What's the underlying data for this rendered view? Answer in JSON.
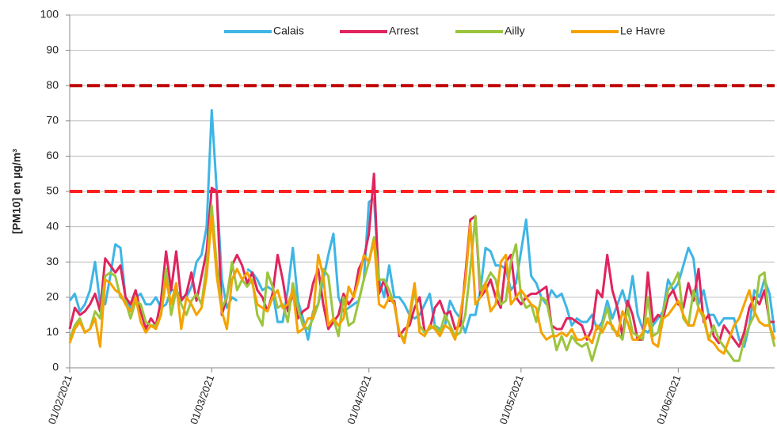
{
  "chart_data": {
    "type": "line",
    "y_label": "[PM10] en µg/m³",
    "x": [
      0,
      1,
      2,
      3,
      4,
      5,
      6,
      7,
      8,
      9,
      10,
      11,
      12,
      13,
      14,
      15,
      16,
      17,
      18,
      19,
      20,
      21,
      22,
      23,
      24,
      25,
      26,
      27,
      28,
      29,
      30,
      31,
      32,
      33,
      34,
      35,
      36,
      37,
      38,
      39,
      40,
      41,
      42,
      43,
      44,
      45,
      46,
      47,
      48,
      49,
      50,
      51,
      52,
      53,
      54,
      55,
      56,
      57,
      58,
      59,
      60,
      61,
      62,
      63,
      64,
      65,
      66,
      67,
      68,
      69,
      70,
      71,
      72,
      73,
      74,
      75,
      76,
      77,
      78,
      79,
      80,
      81,
      82,
      83,
      84,
      85,
      86,
      87,
      88,
      89,
      90,
      91,
      92,
      93,
      94,
      95,
      96,
      97,
      98,
      99,
      100,
      101,
      102,
      103,
      104,
      105,
      106,
      107,
      108,
      109,
      110,
      111,
      112,
      113,
      114,
      115,
      116,
      117,
      118,
      119,
      120,
      121,
      122,
      123,
      124,
      125,
      126,
      127,
      128,
      129,
      130,
      131,
      132,
      133,
      134,
      135,
      136,
      137,
      138,
      139
    ],
    "xlim": [
      0,
      139
    ],
    "xticks": [
      {
        "value": 0,
        "label": "01/02/2021"
      },
      {
        "value": 28,
        "label": "01/03/2021"
      },
      {
        "value": 59,
        "label": "01/04/2021"
      },
      {
        "value": 89,
        "label": "01/05/2021"
      },
      {
        "value": 120,
        "label": "01/06/2021"
      }
    ],
    "ylim": [
      0,
      100
    ],
    "yticks": [
      0,
      10,
      20,
      30,
      40,
      50,
      60,
      70,
      80,
      90,
      100
    ],
    "grid": true,
    "legend": "top",
    "reference_lines": [
      {
        "value": 80,
        "color": "#c00000"
      },
      {
        "value": 50,
        "color": "#ff1f1f"
      }
    ],
    "series": [
      {
        "name": "Calais",
        "color": "#3eb5e5",
        "values": [
          19,
          21,
          16,
          18,
          22,
          30,
          18,
          18,
          26,
          35,
          34,
          20,
          17,
          20,
          21,
          18,
          18,
          20,
          17,
          18,
          22,
          22,
          20,
          20,
          23,
          30,
          32,
          40,
          73,
          50,
          25,
          17,
          20,
          19,
          null,
          28,
          27,
          25,
          22,
          23,
          22,
          13,
          13,
          22,
          34,
          19,
          14,
          8,
          16,
          18,
          25,
          32,
          38,
          20,
          16,
          17,
          18,
          19,
          25,
          47,
          48,
          25,
          20,
          29,
          20,
          20,
          18,
          15,
          14,
          15,
          18,
          21,
          12,
          11,
          12,
          19,
          16,
          14,
          10,
          15,
          15,
          22,
          34,
          33,
          29,
          29,
          28,
          22,
          24,
          33,
          42,
          26,
          24,
          20,
          18,
          22,
          20,
          21,
          17,
          12,
          14,
          13,
          13,
          15,
          11,
          13,
          19,
          14,
          18,
          22,
          17,
          26,
          15,
          11,
          10,
          12,
          14,
          16,
          25,
          22,
          24,
          29,
          34,
          31,
          18,
          22,
          15,
          15,
          12,
          14,
          14,
          14,
          8,
          6,
          12,
          22,
          20,
          25,
          21,
          10
        ]
      },
      {
        "name": "Arrest",
        "color": "#e0245e",
        "values": [
          11,
          17,
          15,
          16,
          18,
          21,
          16,
          31,
          29,
          27,
          29,
          20,
          18,
          22,
          16,
          11,
          14,
          12,
          19,
          33,
          22,
          33,
          19,
          21,
          27,
          19,
          26,
          33,
          51,
          50,
          15,
          20,
          29,
          32,
          29,
          24,
          27,
          22,
          20,
          16,
          21,
          32,
          25,
          16,
          21,
          14,
          16,
          17,
          24,
          28,
          18,
          11,
          13,
          15,
          21,
          18,
          20,
          28,
          31,
          38,
          55,
          21,
          25,
          19,
          19,
          9,
          11,
          12,
          17,
          20,
          10,
          11,
          17,
          19,
          15,
          16,
          11,
          12,
          26,
          42,
          43,
          20,
          22,
          25,
          20,
          17,
          30,
          32,
          20,
          18,
          20,
          21,
          21,
          22,
          23,
          12,
          11,
          11,
          14,
          14,
          13,
          12,
          8,
          11,
          22,
          20,
          32,
          22,
          17,
          9,
          19,
          15,
          8,
          8,
          27,
          13,
          15,
          14,
          20,
          22,
          18,
          17,
          24,
          19,
          28,
          13,
          15,
          9,
          7,
          12,
          10,
          8,
          6,
          10,
          17,
          20,
          18,
          22,
          13,
          13
        ]
      },
      {
        "name": "Ailly",
        "color": "#9bc53d",
        "values": [
          8,
          12,
          14,
          10,
          11,
          16,
          14,
          26,
          27,
          26,
          20,
          19,
          14,
          19,
          18,
          13,
          12,
          12,
          15,
          28,
          15,
          22,
          18,
          15,
          19,
          21,
          18,
          29,
          46,
          29,
          17,
          20,
          30,
          22,
          25,
          23,
          25,
          15,
          12,
          27,
          23,
          17,
          18,
          13,
          24,
          17,
          12,
          11,
          14,
          18,
          28,
          26,
          14,
          9,
          20,
          12,
          13,
          19,
          25,
          30,
          37,
          25,
          25,
          22,
          18,
          10,
          8,
          14,
          22,
          12,
          10,
          11,
          12,
          10,
          15,
          12,
          9,
          10,
          15,
          28,
          43,
          22,
          24,
          27,
          25,
          18,
          19,
          30,
          35,
          20,
          17,
          18,
          13,
          20,
          19,
          12,
          5,
          9,
          5,
          9,
          7,
          6,
          7,
          2,
          7,
          12,
          17,
          11,
          10,
          8,
          17,
          10,
          9,
          8,
          20,
          9,
          10,
          16,
          22,
          24,
          27,
          14,
          12,
          22,
          17,
          14,
          8,
          12,
          8,
          6,
          4,
          2,
          2,
          8,
          12,
          15,
          26,
          27,
          12,
          6
        ]
      },
      {
        "name": "Le Havre",
        "color": "#f5a300",
        "values": [
          7,
          11,
          13,
          10,
          11,
          14,
          6,
          25,
          24,
          22,
          21,
          18,
          16,
          20,
          13,
          10,
          12,
          11,
          15,
          25,
          18,
          24,
          11,
          20,
          18,
          15,
          17,
          26,
          43,
          26,
          16,
          11,
          25,
          28,
          25,
          27,
          24,
          18,
          17,
          16,
          20,
          22,
          17,
          18,
          22,
          10,
          11,
          14,
          14,
          32,
          26,
          12,
          14,
          12,
          14,
          23,
          20,
          25,
          32,
          30,
          36,
          18,
          17,
          20,
          18,
          10,
          7,
          15,
          24,
          10,
          9,
          12,
          11,
          9,
          12,
          11,
          8,
          15,
          24,
          41,
          18,
          20,
          24,
          16,
          18,
          30,
          32,
          18,
          20,
          22,
          20,
          18,
          17,
          10,
          8,
          9,
          9,
          10,
          9,
          11,
          8,
          8,
          9,
          7,
          12,
          10,
          13,
          12,
          9,
          16,
          13,
          8,
          8,
          10,
          14,
          7,
          6,
          14,
          15,
          17,
          19,
          15,
          12,
          12,
          17,
          15,
          8,
          7,
          5,
          4,
          8,
          12,
          14,
          18,
          22,
          16,
          13,
          12,
          12,
          8
        ]
      }
    ]
  }
}
